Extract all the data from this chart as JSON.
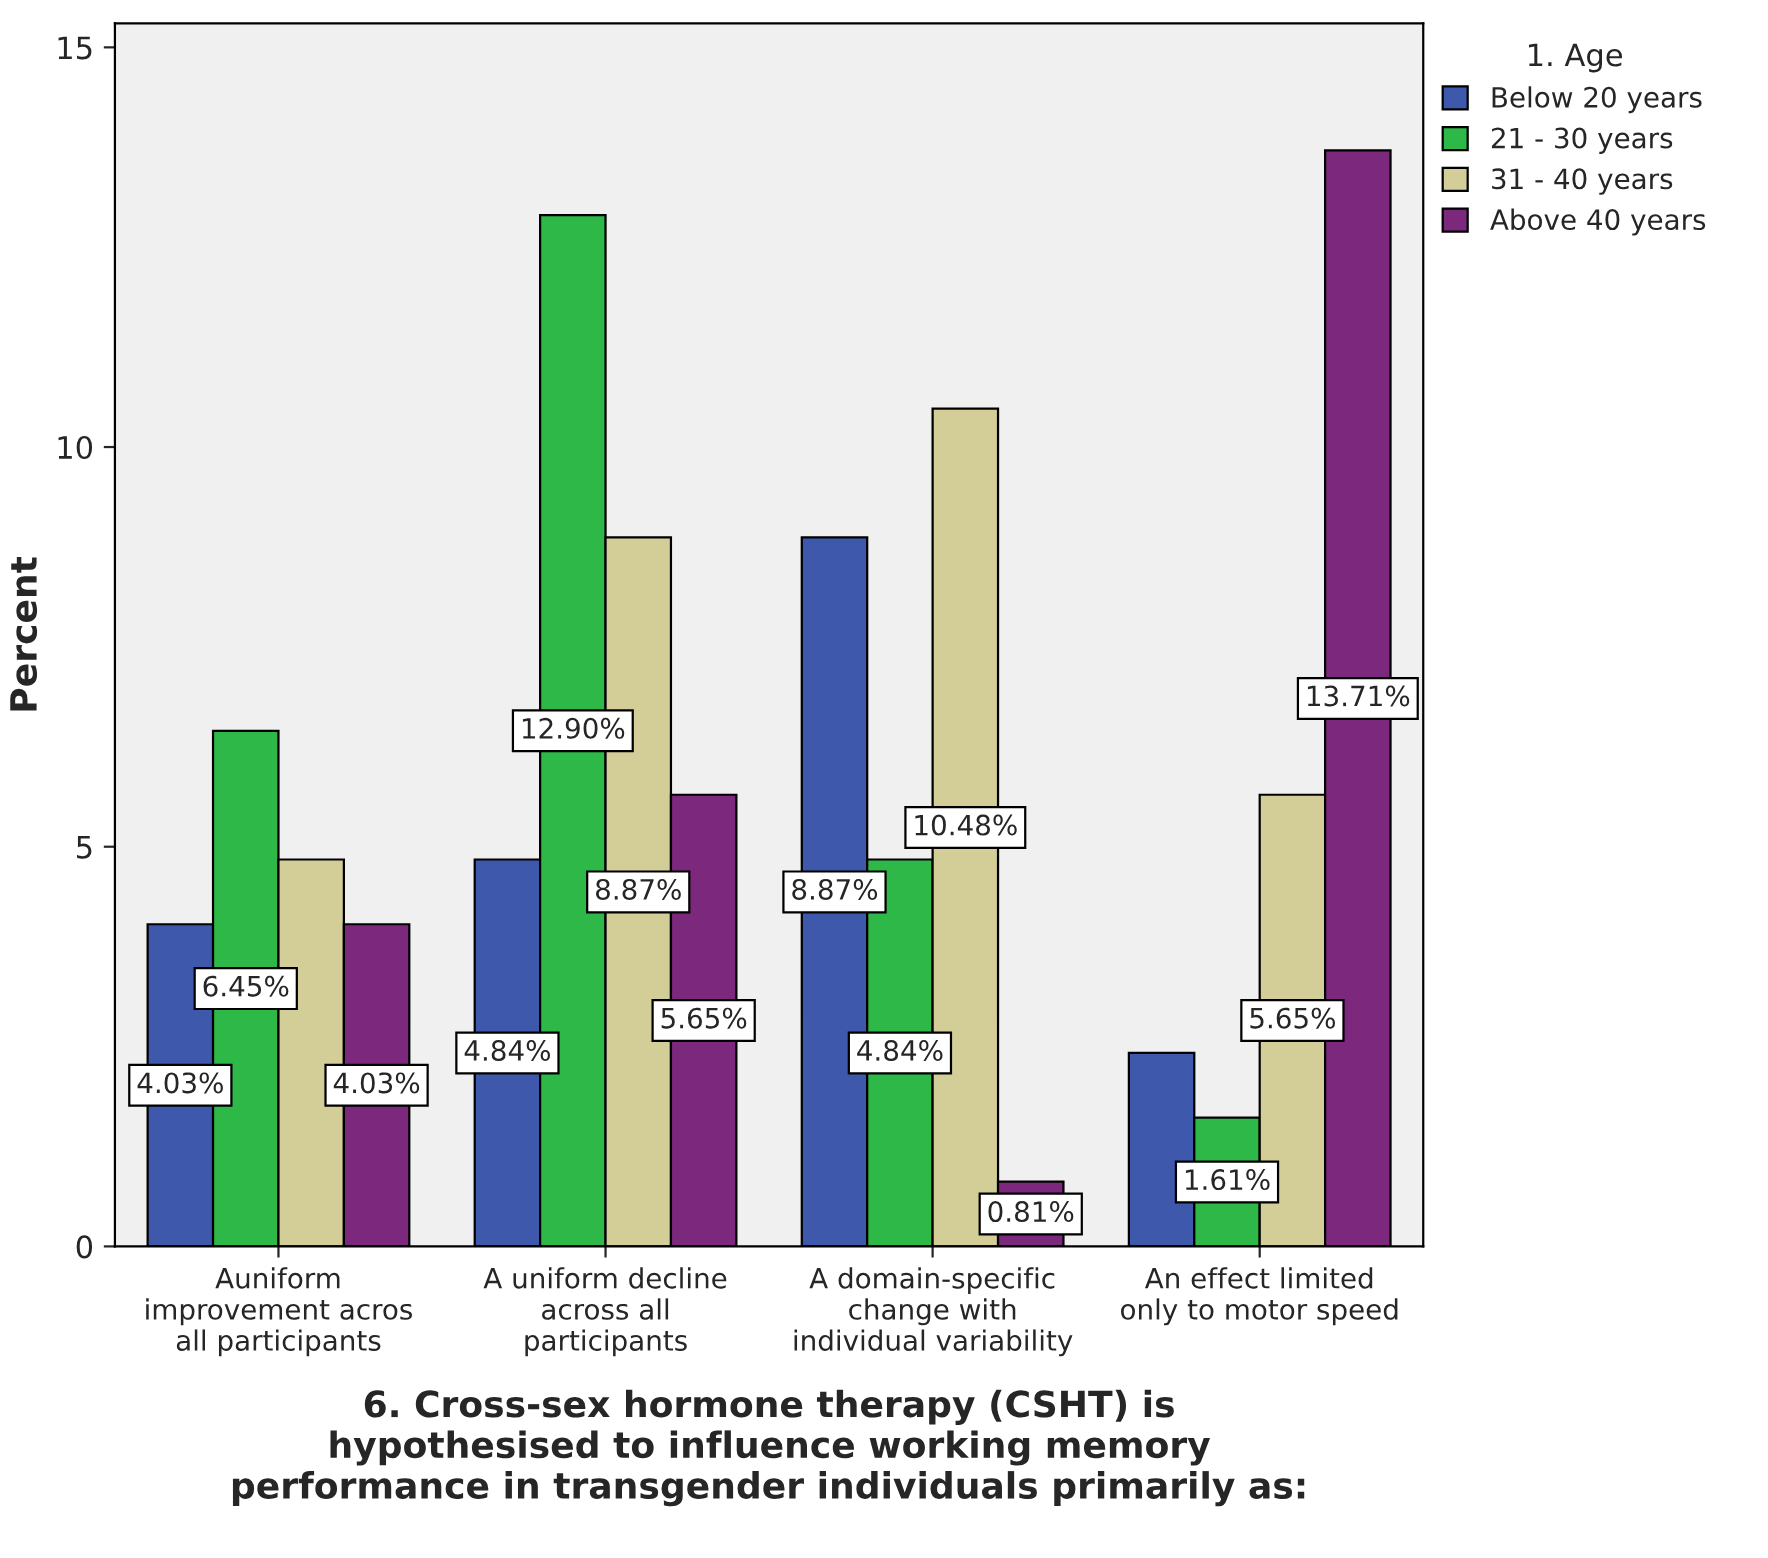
{
  "chart_data": {
    "type": "bar",
    "categories": [
      "Auniform\nimprovement acros\nall participants",
      "A uniform decline\nacross all\nparticipants",
      "A domain-specific\nchange with\nindividual variability",
      "An effect limited\nonly to motor speed"
    ],
    "series": [
      {
        "name": "Below 20 years",
        "color": "#3e58ac",
        "values": [
          4.03,
          4.84,
          8.87,
          2.42
        ],
        "value_labels": [
          "4.03%",
          "4.84%",
          "8.87%",
          null
        ]
      },
      {
        "name": "21 - 30 years",
        "color": "#2eb848",
        "values": [
          6.45,
          12.9,
          4.84,
          1.61
        ],
        "value_labels": [
          "6.45%",
          "12.90%",
          "4.84%",
          "1.61%"
        ]
      },
      {
        "name": "31 - 40 years",
        "color": "#d3ce97",
        "values": [
          4.84,
          8.87,
          10.48,
          5.65
        ],
        "value_labels": [
          null,
          "8.87%",
          "10.48%",
          "5.65%"
        ]
      },
      {
        "name": "Above 40 years",
        "color": "#7c287d",
        "values": [
          4.03,
          5.65,
          0.81,
          13.71
        ],
        "value_labels": [
          "4.03%",
          "5.65%",
          "0.81%",
          "13.71%"
        ]
      }
    ],
    "xlabel": "6. Cross-sex hormone therapy (CSHT) is\nhypothesised to influence working memory\nperformance in transgender individuals primarily as:",
    "ylabel": "Percent",
    "legend_title": "1. Age",
    "legend": "top right",
    "ylim": [
      0,
      15.3
    ],
    "yticks": [
      0,
      5,
      10,
      15
    ],
    "grid": false
  }
}
